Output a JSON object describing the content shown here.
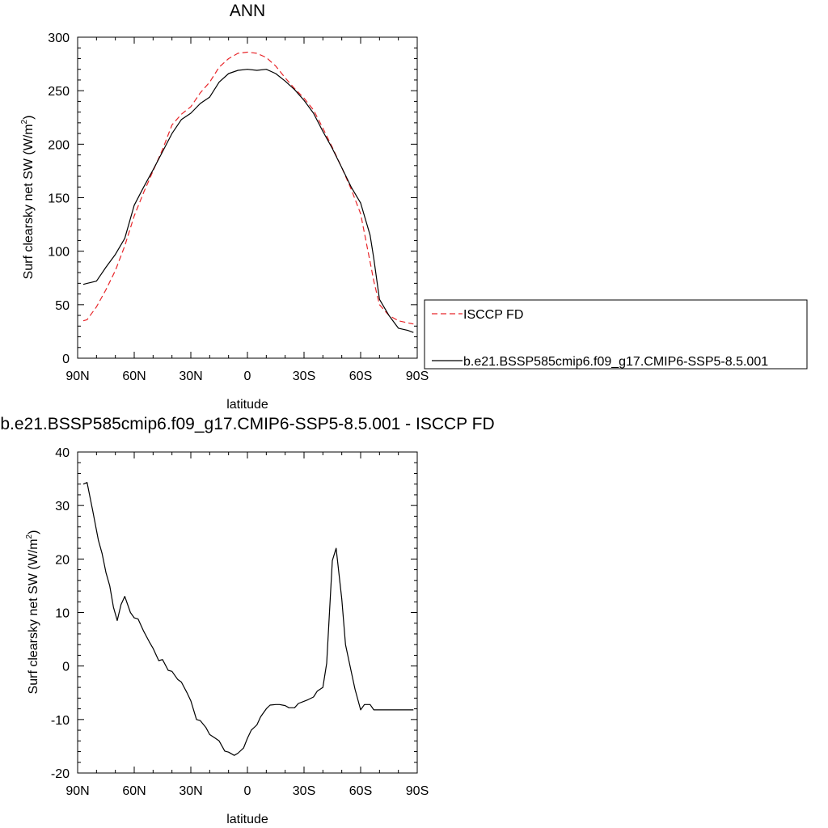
{
  "colors": {
    "model": "#000000",
    "obs": "#e8262a"
  },
  "chart_data": [
    {
      "type": "line",
      "title": "ANN",
      "xlabel": "latitude",
      "ylabel": "Surf clearsky net SW (W/m",
      "ylabel_sup": "2",
      "ylabel_end": ")",
      "x_direction": "north-to-south (90N on left, 90S on right)",
      "xlim": [
        90,
        -90
      ],
      "ylim": [
        0,
        300
      ],
      "x_ticks": [
        90,
        60,
        30,
        0,
        -30,
        -60,
        -90
      ],
      "x_tick_labels": [
        "90N",
        "60N",
        "30N",
        "0",
        "30S",
        "60S",
        "90S"
      ],
      "y_ticks": [
        0,
        50,
        100,
        150,
        200,
        250,
        300
      ],
      "y_tick_labels": [
        "0",
        "50",
        "100",
        "150",
        "200",
        "250",
        "300"
      ],
      "grid": false,
      "legend_position": "right, outside plot",
      "series": [
        {
          "name": "ISCCP FD",
          "style": "dashed",
          "color": "#e8262a",
          "x": [
            87,
            85,
            80,
            75,
            70,
            65,
            60,
            55,
            50,
            45,
            40,
            35,
            30,
            25,
            20,
            15,
            10,
            5,
            0,
            -5,
            -10,
            -15,
            -20,
            -25,
            -30,
            -35,
            -40,
            -45,
            -50,
            -55,
            -60,
            -65,
            -67,
            -70,
            -75,
            -80,
            -85,
            -88
          ],
          "y": [
            35,
            36,
            48,
            64,
            82,
            105,
            133,
            155,
            175,
            195,
            218,
            228,
            235,
            248,
            258,
            272,
            280,
            285,
            286,
            285,
            281,
            273,
            262,
            252,
            243,
            232,
            215,
            197,
            178,
            158,
            135,
            90,
            72,
            50,
            40,
            35,
            33,
            32
          ]
        },
        {
          "name": "b.e21.BSSP585cmip6.f09_g17.CMIP6-SSP5-8.5.001",
          "style": "solid",
          "color": "#000000",
          "x": [
            87,
            85,
            80,
            75,
            70,
            65,
            60,
            55,
            50,
            45,
            40,
            35,
            30,
            25,
            20,
            15,
            10,
            5,
            0,
            -5,
            -10,
            -15,
            -20,
            -25,
            -30,
            -35,
            -40,
            -45,
            -50,
            -55,
            -60,
            -65,
            -67,
            -70,
            -75,
            -80,
            -85,
            -88
          ],
          "y": [
            69,
            70,
            72,
            85,
            97,
            112,
            143,
            160,
            176,
            193,
            210,
            223,
            229,
            238,
            244,
            258,
            266,
            269,
            270,
            269,
            270,
            266,
            259,
            251,
            241,
            229,
            212,
            196,
            178,
            160,
            145,
            115,
            93,
            55,
            40,
            28,
            26,
            24
          ]
        }
      ]
    },
    {
      "type": "line",
      "title": "b.e21.BSSP585cmip6.f09_g17.CMIP6-SSP5-8.5.001 - ISCCP FD",
      "xlabel": "latitude",
      "ylabel": "Surf clearsky net SW (W/m",
      "ylabel_sup": "2",
      "ylabel_end": ")",
      "x_direction": "north-to-south (90N on left, 90S on right)",
      "xlim": [
        90,
        -90
      ],
      "ylim": [
        -20,
        40
      ],
      "x_ticks": [
        90,
        60,
        30,
        0,
        -30,
        -60,
        -90
      ],
      "x_tick_labels": [
        "90N",
        "60N",
        "30N",
        "0",
        "30S",
        "60S",
        "90S"
      ],
      "y_ticks": [
        -20,
        -10,
        0,
        10,
        20,
        30,
        40
      ],
      "y_tick_labels": [
        "-20",
        "-10",
        "0",
        "10",
        "20",
        "30",
        "40"
      ],
      "grid": false,
      "legend_position": "none",
      "series": [
        {
          "style": "solid",
          "color": "#000000",
          "x": [
            87,
            85,
            82,
            79,
            77,
            75,
            73,
            71,
            69,
            67,
            65,
            62,
            60,
            58,
            55,
            52,
            50,
            47,
            45,
            42,
            40,
            37,
            35,
            32,
            30,
            27,
            25,
            22,
            20,
            17,
            15,
            12,
            10,
            7,
            5,
            2,
            0,
            -2,
            -5,
            -7,
            -10,
            -12,
            -15,
            -17,
            -20,
            -22,
            -25,
            -27,
            -30,
            -32,
            -35,
            -37,
            -40,
            -42,
            -45,
            -47,
            -50,
            -52,
            -55,
            -57,
            -60,
            -62,
            -65,
            -67,
            -70,
            -72,
            -75,
            -77,
            -80,
            -82,
            -85,
            -87,
            -88
          ],
          "y": [
            34,
            34.3,
            29,
            23.5,
            21,
            17.5,
            15,
            11,
            8.5,
            11.5,
            13,
            10,
            9,
            8.8,
            6.5,
            4.5,
            3.3,
            1,
            1.2,
            -0.8,
            -1,
            -2.5,
            -3,
            -5,
            -6.5,
            -10,
            -10.2,
            -11.5,
            -12.8,
            -13.5,
            -14,
            -15.9,
            -16.1,
            -16.7,
            -16.3,
            -15.3,
            -13.5,
            -12,
            -11,
            -9.5,
            -8,
            -7.3,
            -7.2,
            -7.2,
            -7.4,
            -7.8,
            -7.8,
            -7,
            -6.6,
            -6.3,
            -5.8,
            -4.7,
            -4,
            0.5,
            19.7,
            22,
            12.5,
            4,
            -1,
            -4.3,
            -8.2,
            -7.2,
            -7.2,
            -8.2,
            -8.2,
            -8.2,
            -8.2,
            -8.2,
            -8.2,
            -8.2,
            -8.2,
            -8.2,
            -8.2
          ]
        }
      ]
    }
  ]
}
